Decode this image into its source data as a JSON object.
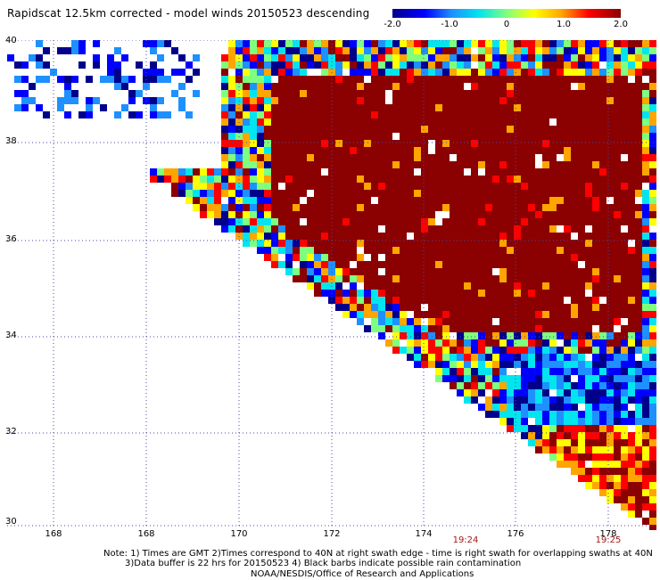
{
  "title": "Rapidscat 12.5km corrected - model winds 20150523 descending",
  "colorbar": {
    "labels": [
      "-2.0",
      "-1.0",
      "0",
      "1.0",
      "2.0"
    ],
    "colors": [
      "#00008b",
      "#0000ff",
      "#1e90ff",
      "#00e5ee",
      "#7fff7f",
      "#ffff00",
      "#ffa500",
      "#ff0000",
      "#8b0000"
    ]
  },
  "map": {
    "lat_labels": [
      "40",
      "38",
      "36",
      "34",
      "32",
      "30"
    ],
    "lon_labels": [
      "168",
      "168",
      "170",
      "172",
      "174",
      "176",
      "178"
    ],
    "times": [
      "19:24",
      "19:25"
    ],
    "background": "#ffffff",
    "grid_color": "#4a4aa8"
  },
  "notes": {
    "line1": "Note: 1) Times are GMT 2)Times correspond to 40N at right swath edge - time is right swath for overlapping swaths at 40N",
    "line2": "3)Data buffer is 22 hrs for 20150523 4) Black barbs indicate possible rain contamination",
    "line3": "NOAA/NESDIS/Office of Research and Applications"
  }
}
